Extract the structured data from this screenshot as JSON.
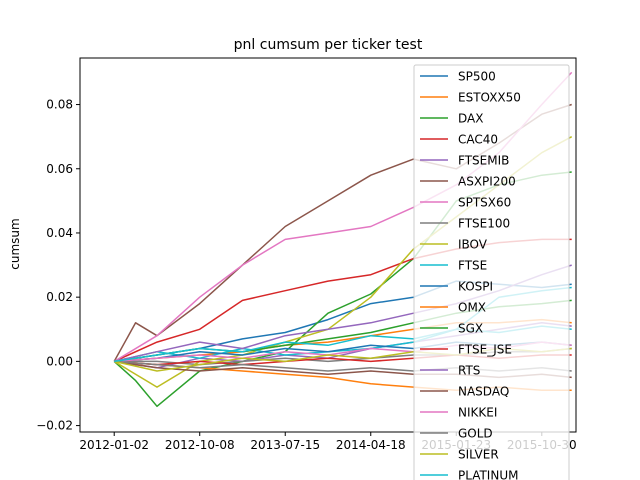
{
  "chart_data": {
    "type": "line",
    "title": "pnl cumsum per ticker test",
    "xlabel": "",
    "ylabel": "cumsum",
    "x_tick_labels": [
      "2012-01-02",
      "2012-10-08",
      "2013-07-15",
      "2014-04-18",
      "2015-01-23",
      "2015-10-30"
    ],
    "y_tick_labels": [
      "−0.02",
      "0.00",
      "0.02",
      "0.04",
      "0.06",
      "0.08"
    ],
    "y_ticks": [
      -0.02,
      0.0,
      0.02,
      0.04,
      0.06,
      0.08
    ],
    "ylim": [
      -0.022,
      0.0945
    ],
    "xlim": [
      -0.08,
      1.08
    ],
    "x_ticks_norm": [
      0,
      0.2,
      0.4,
      0.6,
      0.8,
      1.0
    ],
    "legend_position": "upper right",
    "grid": false,
    "series": [
      {
        "name": "SP500",
        "color": "#1f77b4",
        "x": [
          0,
          0.1,
          0.2,
          0.3,
          0.4,
          0.5,
          0.6,
          0.7,
          0.8,
          0.9,
          1.0,
          1.07
        ],
        "y": [
          0,
          0.002,
          0.004,
          0.007,
          0.009,
          0.013,
          0.018,
          0.02,
          0.025,
          0.024,
          0.023,
          0.024
        ]
      },
      {
        "name": "ESTOXX50",
        "color": "#ff7f0e",
        "x": [
          0,
          0.1,
          0.2,
          0.3,
          0.4,
          0.5,
          0.6,
          0.7,
          0.8,
          0.9,
          1.0,
          1.07
        ],
        "y": [
          0,
          0.001,
          0.002,
          0.003,
          0.005,
          0.006,
          0.008,
          0.01,
          0.012,
          0.012,
          0.013,
          0.012
        ]
      },
      {
        "name": "DAX",
        "color": "#2ca02c",
        "x": [
          0,
          0.05,
          0.1,
          0.2,
          0.3,
          0.4,
          0.5,
          0.6,
          0.7,
          0.8,
          0.9,
          1.0,
          1.07
        ],
        "y": [
          0,
          -0.006,
          -0.014,
          -0.003,
          0.0,
          0.003,
          0.015,
          0.021,
          0.032,
          0.05,
          0.055,
          0.058,
          0.059
        ]
      },
      {
        "name": "CAC40",
        "color": "#d62728",
        "x": [
          0,
          0.1,
          0.2,
          0.3,
          0.4,
          0.5,
          0.6,
          0.7,
          0.8,
          0.9,
          1.0,
          1.07
        ],
        "y": [
          0,
          0.006,
          0.01,
          0.019,
          0.022,
          0.025,
          0.027,
          0.032,
          0.035,
          0.037,
          0.038,
          0.038
        ]
      },
      {
        "name": "FTSEMIB",
        "color": "#9467bd",
        "x": [
          0,
          0.1,
          0.2,
          0.3,
          0.4,
          0.5,
          0.6,
          0.7,
          0.8,
          0.9,
          1.0,
          1.07
        ],
        "y": [
          0,
          -0.002,
          0.001,
          0.0,
          0.002,
          0.001,
          0.004,
          0.006,
          0.008,
          0.01,
          0.012,
          0.011
        ]
      },
      {
        "name": "ASXPI200",
        "color": "#8c564b",
        "x": [
          0,
          0.05,
          0.1,
          0.2,
          0.3,
          0.4,
          0.5,
          0.6,
          0.7,
          0.8,
          0.9,
          1.0,
          1.07
        ],
        "y": [
          0,
          0.012,
          0.008,
          0.018,
          0.03,
          0.042,
          0.05,
          0.058,
          0.063,
          0.06,
          0.068,
          0.077,
          0.08
        ]
      },
      {
        "name": "SPTSX60",
        "color": "#e377c2",
        "x": [
          0,
          0.1,
          0.2,
          0.3,
          0.4,
          0.5,
          0.6,
          0.7,
          0.8,
          0.9,
          1.0,
          1.07
        ],
        "y": [
          0,
          0.008,
          0.02,
          0.03,
          0.038,
          0.04,
          0.042,
          0.048,
          0.055,
          0.065,
          0.08,
          0.09
        ]
      },
      {
        "name": "FTSE100",
        "color": "#7f7f7f",
        "x": [
          0,
          0.1,
          0.2,
          0.3,
          0.4,
          0.5,
          0.6,
          0.7,
          0.8,
          0.9,
          1.0,
          1.07
        ],
        "y": [
          0,
          0.0,
          -0.001,
          0.0,
          0.001,
          0.0,
          0.001,
          0.002,
          0.002,
          0.003,
          0.003,
          0.004
        ]
      },
      {
        "name": "IBOV",
        "color": "#bcbd22",
        "x": [
          0,
          0.1,
          0.2,
          0.3,
          0.4,
          0.5,
          0.6,
          0.7,
          0.8,
          0.9,
          1.0,
          1.07
        ],
        "y": [
          0,
          -0.008,
          0.0,
          0.002,
          0.006,
          0.01,
          0.02,
          0.035,
          0.045,
          0.055,
          0.065,
          0.07
        ]
      },
      {
        "name": "FTSE",
        "color": "#17becf",
        "x": [
          0,
          0.1,
          0.2,
          0.3,
          0.4,
          0.5,
          0.6,
          0.7,
          0.8,
          0.9,
          1.0,
          1.07
        ],
        "y": [
          0,
          0.003,
          0.001,
          0.004,
          0.002,
          0.003,
          0.004,
          0.006,
          0.01,
          0.02,
          0.022,
          0.023
        ]
      },
      {
        "name": "KOSPI",
        "color": "#1f77b4",
        "x": [
          0,
          0.1,
          0.2,
          0.3,
          0.4,
          0.5,
          0.6,
          0.7,
          0.8,
          0.9,
          1.0,
          1.07
        ],
        "y": [
          0,
          0.001,
          0.003,
          0.002,
          0.004,
          0.003,
          0.005,
          0.004,
          0.006,
          0.005,
          0.006,
          0.005
        ]
      },
      {
        "name": "OMX",
        "color": "#ff7f0e",
        "x": [
          0,
          0.1,
          0.2,
          0.3,
          0.4,
          0.5,
          0.6,
          0.7,
          0.8,
          0.9,
          1.0,
          1.07
        ],
        "y": [
          0,
          -0.001,
          -0.002,
          -0.003,
          -0.004,
          -0.005,
          -0.007,
          -0.008,
          -0.009,
          -0.008,
          -0.009,
          -0.009
        ]
      },
      {
        "name": "SGX",
        "color": "#2ca02c",
        "x": [
          0,
          0.1,
          0.2,
          0.3,
          0.4,
          0.5,
          0.6,
          0.7,
          0.8,
          0.9,
          1.0,
          1.07
        ],
        "y": [
          0,
          0.002,
          0.004,
          0.003,
          0.005,
          0.007,
          0.009,
          0.012,
          0.015,
          0.017,
          0.018,
          0.019
        ]
      },
      {
        "name": "FTSE_JSE",
        "color": "#d62728",
        "x": [
          0,
          0.1,
          0.2,
          0.3,
          0.4,
          0.5,
          0.6,
          0.7,
          0.8,
          0.9,
          1.0,
          1.07
        ],
        "y": [
          0,
          -0.001,
          0.0,
          -0.001,
          0.0,
          0.001,
          0.0,
          0.001,
          0.002,
          0.001,
          0.002,
          0.002
        ]
      },
      {
        "name": "RTS",
        "color": "#9467bd",
        "x": [
          0,
          0.1,
          0.2,
          0.3,
          0.4,
          0.5,
          0.6,
          0.7,
          0.8,
          0.9,
          1.0,
          1.07
        ],
        "y": [
          0,
          0.003,
          0.006,
          0.004,
          0.008,
          0.01,
          0.012,
          0.015,
          0.018,
          0.022,
          0.027,
          0.03
        ]
      },
      {
        "name": "NASDAQ",
        "color": "#8c564b",
        "x": [
          0,
          0.1,
          0.2,
          0.3,
          0.4,
          0.5,
          0.6,
          0.7,
          0.8,
          0.9,
          1.0,
          1.07
        ],
        "y": [
          0,
          -0.002,
          -0.003,
          -0.002,
          -0.003,
          -0.004,
          -0.003,
          -0.004,
          -0.004,
          -0.005,
          -0.004,
          -0.005
        ]
      },
      {
        "name": "NIKKEI",
        "color": "#e377c2",
        "x": [
          0,
          0.1,
          0.2,
          0.3,
          0.4,
          0.5,
          0.6,
          0.7,
          0.8,
          0.9,
          1.0,
          1.07
        ],
        "y": [
          0,
          0.001,
          0.002,
          0.001,
          0.003,
          0.002,
          0.004,
          0.003,
          0.005,
          0.004,
          0.006,
          0.005
        ]
      },
      {
        "name": "GOLD",
        "color": "#7f7f7f",
        "x": [
          0,
          0.1,
          0.2,
          0.3,
          0.4,
          0.5,
          0.6,
          0.7,
          0.8,
          0.9,
          1.0,
          1.07
        ],
        "y": [
          0,
          -0.001,
          -0.002,
          -0.001,
          -0.002,
          -0.003,
          -0.002,
          -0.003,
          -0.002,
          -0.003,
          -0.002,
          -0.003
        ]
      },
      {
        "name": "SILVER",
        "color": "#bcbd22",
        "x": [
          0,
          0.1,
          0.2,
          0.3,
          0.4,
          0.5,
          0.6,
          0.7,
          0.8,
          0.9,
          1.0,
          1.07
        ],
        "y": [
          0,
          -0.003,
          -0.001,
          0.001,
          0.0,
          0.002,
          0.001,
          0.003,
          0.002,
          0.004,
          0.003,
          0.004
        ]
      },
      {
        "name": "PLATINUM",
        "color": "#17becf",
        "x": [
          0,
          0.1,
          0.2,
          0.3,
          0.4,
          0.5,
          0.6,
          0.7,
          0.8,
          0.9,
          1.0,
          1.07
        ],
        "y": [
          0,
          0.002,
          0.004,
          0.003,
          0.006,
          0.005,
          0.008,
          0.007,
          0.01,
          0.009,
          0.011,
          0.01
        ]
      }
    ]
  }
}
